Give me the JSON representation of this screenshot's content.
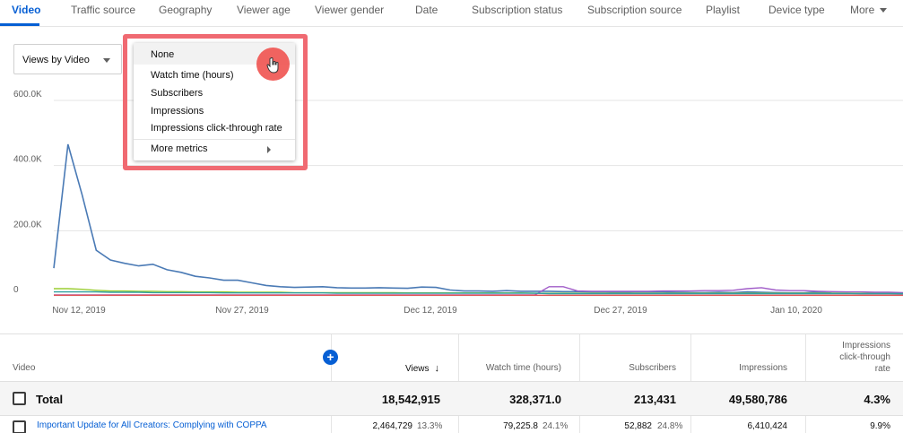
{
  "tabs": [
    {
      "label": "Video",
      "active": true
    },
    {
      "label": "Traffic source"
    },
    {
      "label": "Geography"
    },
    {
      "label": "Viewer age"
    },
    {
      "label": "Viewer gender"
    },
    {
      "label": "Date"
    },
    {
      "label": "Subscription status"
    },
    {
      "label": "Subscription source"
    },
    {
      "label": "Playlist"
    },
    {
      "label": "Device type"
    },
    {
      "label": "More"
    }
  ],
  "select": {
    "label": "Views by Video"
  },
  "menu": {
    "items": [
      "None",
      "Watch time (hours)",
      "Subscribers",
      "Impressions",
      "Impressions click-through rate"
    ],
    "more": "More metrics"
  },
  "chart_data": {
    "type": "line",
    "y_ticks": [
      "600.0K",
      "400.0K",
      "200.0K",
      "0"
    ],
    "x_ticks": [
      "Nov 12, 2019",
      "Nov 27, 2019",
      "Dec 12, 2019",
      "Dec 27, 2019",
      "Jan 10, 2020"
    ],
    "ylim": [
      0,
      600000
    ],
    "colors": [
      "#4a7ab5",
      "#9acd32",
      "#a05cc8",
      "#e05050",
      "#30a0a0"
    ],
    "series": [
      {
        "values": [
          85000,
          465000,
          310000,
          140000,
          110000,
          100000,
          92000,
          97000,
          80000,
          72000,
          60000,
          55000,
          48000,
          48000,
          40000,
          32000,
          28000,
          26000,
          27000,
          28000,
          25000,
          24000,
          24000,
          25000,
          24000,
          23000,
          27000,
          26000,
          18000,
          15000,
          15000,
          14000,
          16000,
          14000,
          14000,
          14000,
          13000,
          13000,
          12000,
          12000,
          11000,
          12000,
          12000,
          12000,
          11000,
          10000,
          10000,
          11000,
          10000,
          12000,
          11000,
          10000,
          9000,
          9000,
          12000,
          8000,
          8000,
          7000,
          7000,
          7000,
          6000
        ]
      },
      {
        "values": [
          22000,
          22000,
          20000,
          17000,
          15000,
          15000,
          14000,
          14000,
          13000,
          13000,
          12000,
          12000,
          12000,
          11000,
          11000,
          11000,
          11000,
          10000,
          10000,
          10000,
          10000,
          10000,
          10000,
          10000,
          10000,
          9000,
          9000,
          9000,
          9000,
          9000,
          9000,
          9000,
          9000,
          9000,
          8000,
          8000,
          8000,
          8000,
          8000,
          8000,
          8000,
          8000,
          8000,
          8000,
          8000,
          8000,
          8000,
          8000,
          8000,
          8000,
          8000,
          8000,
          8000,
          8000,
          8000,
          8000,
          8000,
          8000,
          8000,
          8000,
          8000
        ]
      },
      {
        "values": [
          3000,
          3000,
          3000,
          3000,
          3000,
          3000,
          3000,
          3000,
          3000,
          3000,
          3000,
          3000,
          3000,
          3000,
          3000,
          3000,
          3000,
          3000,
          3000,
          3000,
          3000,
          3000,
          3000,
          3000,
          3000,
          3000,
          3000,
          3000,
          3000,
          3000,
          3000,
          3000,
          3000,
          3000,
          3000,
          28000,
          28000,
          15000,
          14000,
          14000,
          14000,
          14000,
          14000,
          15000,
          15000,
          15000,
          16000,
          16000,
          17000,
          22000,
          25000,
          18000,
          16000,
          16000,
          14000,
          13000,
          12000,
          12000,
          11000,
          11000,
          10000
        ]
      },
      {
        "values": [
          2000,
          2000,
          2000,
          2000,
          2000,
          2000,
          2000,
          2000,
          2000,
          2000,
          2000,
          2000,
          2000,
          2000,
          2000,
          2000,
          2000,
          2000,
          2000,
          2000,
          2000,
          2000,
          2000,
          2000,
          2000,
          2000,
          2000,
          2000,
          2000,
          2000,
          2000,
          2000,
          2000,
          2000,
          2000,
          2000,
          2000,
          2000,
          2000,
          2000,
          2000,
          2000,
          2000,
          2000,
          2000,
          2000,
          2000,
          2000,
          2000,
          2000,
          2000,
          2000,
          2000,
          2000,
          2000,
          2000,
          2000,
          2000,
          2000,
          2000,
          2000
        ]
      },
      {
        "values": [
          12000,
          12000,
          12000,
          12000,
          11000,
          11000,
          11000,
          10000,
          10000,
          10000,
          10000,
          10000,
          9000,
          9000,
          9000,
          9000,
          9000,
          9000,
          9000,
          9000,
          8000,
          8000,
          8000,
          8000,
          8000,
          8000,
          8000,
          8000,
          8000,
          8000,
          8000,
          8000,
          8000,
          8000,
          8000,
          7000,
          7000,
          7000,
          7000,
          7000,
          7000,
          7000,
          7000,
          7000,
          7000,
          7000,
          7000,
          7000,
          7000,
          7000,
          7000,
          7000,
          7000,
          7000,
          7000,
          7000,
          7000,
          7000,
          7000,
          7000,
          7000
        ]
      }
    ],
    "grid": true
  },
  "table": {
    "headers": {
      "video": "Video",
      "views": "Views",
      "watch": "Watch time (hours)",
      "subs": "Subscribers",
      "impr": "Impressions",
      "ctr1": "Impressions",
      "ctr2": "click-through",
      "ctr3": "rate"
    },
    "total": {
      "label": "Total",
      "views": "18,542,915",
      "watch": "328,371.0",
      "subs": "213,431",
      "impr": "49,580,786",
      "ctr": "4.3%"
    },
    "row": {
      "title": "Important Update for All Creators: Complying with COPPA",
      "views": "2,464,729",
      "views_pct": "13.3%",
      "watch": "79,225.8",
      "watch_pct": "24.1%",
      "subs": "52,882",
      "subs_pct": "24.8%",
      "impr": "6,410,424",
      "ctr": "9.9%"
    }
  }
}
